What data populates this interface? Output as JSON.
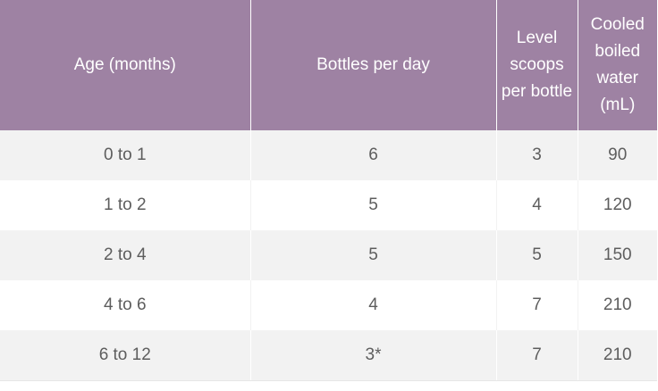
{
  "table": {
    "headers": [
      "Age (months)",
      "Bottles per day",
      "Level scoops per bottle",
      "Cooled boiled water (mL)"
    ],
    "rows": [
      [
        "0 to 1",
        "6",
        "3",
        "90"
      ],
      [
        "1 to 2",
        "5",
        "4",
        "120"
      ],
      [
        "2 to 4",
        "5",
        "5",
        "150"
      ],
      [
        "4 to 6",
        "4",
        "7",
        "210"
      ],
      [
        "6 to 12",
        "3*",
        "7",
        "210"
      ]
    ]
  },
  "colors": {
    "header_bg": "#9e82a3",
    "header_text": "#ffffff",
    "row_stripe": "#f2f2f2",
    "row_plain": "#ffffff",
    "cell_text": "#5d5d5d"
  }
}
